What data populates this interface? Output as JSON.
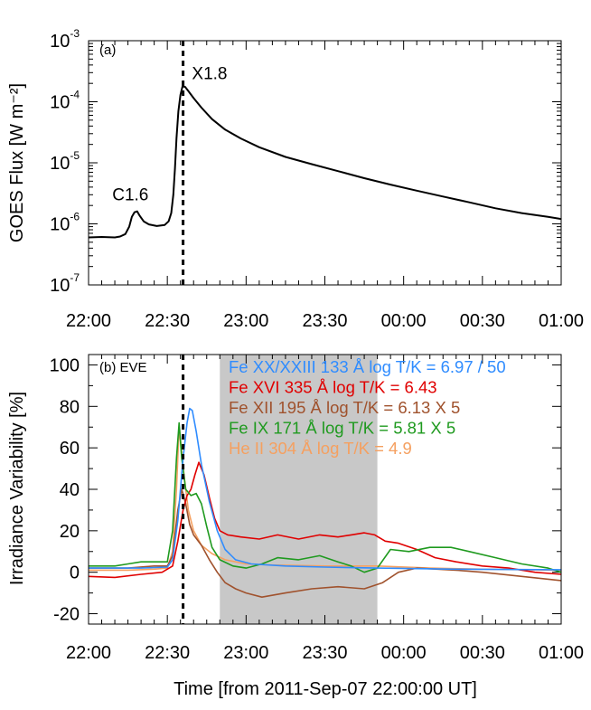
{
  "figure": {
    "xlabel": "Time [from 2011-Sep-07 22:00:00 UT]"
  },
  "chart_data": [
    {
      "panel": "(a)",
      "type": "line",
      "ylabel": "GOES Flux [W m⁻²]",
      "yscale": "log",
      "ylim": [
        1e-07,
        0.001
      ],
      "yticks": [
        {
          "mant": "10",
          "exp": "-7"
        },
        {
          "mant": "10",
          "exp": "-6"
        },
        {
          "mant": "10",
          "exp": "-5"
        },
        {
          "mant": "10",
          "exp": "-4"
        },
        {
          "mant": "10",
          "exp": "-3"
        }
      ],
      "xlim_minutes": [
        0,
        180
      ],
      "xticks": [
        "22:00",
        "22:30",
        "23:00",
        "23:30",
        "00:00",
        "00:30",
        "01:00"
      ],
      "event_line_minutes": 36,
      "annotations": [
        {
          "text": "C1.6",
          "x_minutes": 18,
          "y": 1.6e-06
        },
        {
          "text": "X1.8",
          "x_minutes": 38,
          "y": 0.00018
        }
      ],
      "series": [
        {
          "color": "#000000",
          "points": [
            [
              0,
              6e-07
            ],
            [
              5,
              6.1e-07
            ],
            [
              10,
              6e-07
            ],
            [
              12,
              6.2e-07
            ],
            [
              14,
              6.8e-07
            ],
            [
              15.5,
              9e-07
            ],
            [
              16.5,
              1.3e-06
            ],
            [
              17.5,
              1.55e-06
            ],
            [
              18.5,
              1.6e-06
            ],
            [
              19.5,
              1.35e-06
            ],
            [
              21,
              1.1e-06
            ],
            [
              23,
              9.8e-07
            ],
            [
              26,
              9.2e-07
            ],
            [
              29,
              9.6e-07
            ],
            [
              30.5,
              1.1e-06
            ],
            [
              31.5,
              1.5e-06
            ],
            [
              32.3,
              3e-06
            ],
            [
              32.9,
              8e-06
            ],
            [
              33.5,
              2.5e-05
            ],
            [
              34.2,
              7e-05
            ],
            [
              35,
              0.00013
            ],
            [
              35.8,
              0.00018
            ],
            [
              36.8,
              0.000175
            ],
            [
              38,
              0.00015
            ],
            [
              40,
              0.000115
            ],
            [
              43,
              8e-05
            ],
            [
              47,
              5.2e-05
            ],
            [
              52,
              3.5e-05
            ],
            [
              58,
              2.5e-05
            ],
            [
              65,
              1.8e-05
            ],
            [
              75,
              1.25e-05
            ],
            [
              85,
              9.5e-06
            ],
            [
              95,
              7.3e-06
            ],
            [
              105,
              5.6e-06
            ],
            [
              115,
              4.4e-06
            ],
            [
              125,
              3.5e-06
            ],
            [
              135,
              2.8e-06
            ],
            [
              145,
              2.25e-06
            ],
            [
              155,
              1.8e-06
            ],
            [
              165,
              1.5e-06
            ],
            [
              175,
              1.3e-06
            ],
            [
              180,
              1.2e-06
            ]
          ]
        }
      ]
    },
    {
      "panel": "(b) EVE",
      "type": "line",
      "ylabel": "Irradiance Variability [%]",
      "ylim": [
        -25,
        105
      ],
      "yticks": [
        -20,
        0,
        20,
        40,
        60,
        80,
        100
      ],
      "xlim_minutes": [
        0,
        180
      ],
      "xticks": [
        "22:00",
        "22:30",
        "23:00",
        "23:30",
        "00:00",
        "00:30",
        "01:00"
      ],
      "event_line_minutes": 36,
      "shaded_interval_minutes": [
        50,
        110
      ],
      "series": [
        {
          "name": "Fe XX/XXIII 133 Å log T/K = 6.97 / 50",
          "color": "#2f8cff",
          "points": [
            [
              0,
              2
            ],
            [
              20,
              2
            ],
            [
              30,
              2.5
            ],
            [
              32,
              6
            ],
            [
              34,
              25
            ],
            [
              36,
              55
            ],
            [
              37.5,
              72
            ],
            [
              38.5,
              79
            ],
            [
              39.5,
              78
            ],
            [
              41,
              68
            ],
            [
              43,
              52
            ],
            [
              46,
              34
            ],
            [
              49,
              20
            ],
            [
              52,
              11
            ],
            [
              56,
              6
            ],
            [
              62,
              4
            ],
            [
              75,
              3
            ],
            [
              90,
              2.5
            ],
            [
              110,
              2
            ],
            [
              140,
              1.5
            ],
            [
              180,
              1.2
            ]
          ]
        },
        {
          "name": "Fe XVI 335 Å log T/K = 6.43",
          "color": "#e00000",
          "points": [
            [
              0,
              -2
            ],
            [
              10,
              -2.5
            ],
            [
              20,
              -1
            ],
            [
              28,
              0
            ],
            [
              32,
              3
            ],
            [
              34,
              15
            ],
            [
              36,
              30
            ],
            [
              37.5,
              37
            ],
            [
              39,
              40
            ],
            [
              40.5,
              47
            ],
            [
              42,
              53
            ],
            [
              44,
              47
            ],
            [
              46,
              36
            ],
            [
              48,
              26
            ],
            [
              50,
              20
            ],
            [
              53,
              18
            ],
            [
              58,
              17
            ],
            [
              65,
              16
            ],
            [
              72,
              18
            ],
            [
              80,
              16
            ],
            [
              88,
              18
            ],
            [
              95,
              17
            ],
            [
              100,
              18
            ],
            [
              105,
              19
            ],
            [
              109,
              18
            ],
            [
              113,
              15
            ],
            [
              118,
              14
            ],
            [
              125,
              11
            ],
            [
              132,
              7
            ],
            [
              140,
              5
            ],
            [
              150,
              3
            ],
            [
              160,
              2
            ],
            [
              170,
              0
            ],
            [
              180,
              -1
            ]
          ]
        },
        {
          "name": "Fe XII 195 Å log T/K = 6.13 X 5",
          "color": "#a0522d",
          "points": [
            [
              0,
              2
            ],
            [
              15,
              2
            ],
            [
              25,
              3
            ],
            [
              30,
              3
            ],
            [
              32,
              8
            ],
            [
              34,
              30
            ],
            [
              35.5,
              40
            ],
            [
              37,
              33
            ],
            [
              38.5,
              23
            ],
            [
              40,
              18
            ],
            [
              43,
              13
            ],
            [
              46,
              6
            ],
            [
              49,
              0
            ],
            [
              52,
              -5
            ],
            [
              56,
              -8
            ],
            [
              60,
              -10
            ],
            [
              66,
              -12
            ],
            [
              75,
              -10
            ],
            [
              85,
              -8
            ],
            [
              95,
              -7
            ],
            [
              105,
              -8
            ],
            [
              112,
              -5
            ],
            [
              118,
              0
            ],
            [
              125,
              2
            ],
            [
              140,
              1
            ],
            [
              150,
              0
            ],
            [
              165,
              -2
            ],
            [
              180,
              -4
            ]
          ]
        },
        {
          "name": "Fe IX 171 Å log T/K = 5.81 X 5",
          "color": "#1f9a1f",
          "points": [
            [
              0,
              3
            ],
            [
              10,
              3
            ],
            [
              15,
              4
            ],
            [
              20,
              5
            ],
            [
              25,
              5
            ],
            [
              30,
              5
            ],
            [
              32,
              20
            ],
            [
              33.5,
              55
            ],
            [
              34.5,
              72
            ],
            [
              35.5,
              55
            ],
            [
              37,
              40
            ],
            [
              39,
              37
            ],
            [
              41,
              38
            ],
            [
              43,
              33
            ],
            [
              45,
              22
            ],
            [
              47,
              12
            ],
            [
              50,
              6
            ],
            [
              55,
              3
            ],
            [
              60,
              2
            ],
            [
              66,
              4
            ],
            [
              72,
              7
            ],
            [
              80,
              6
            ],
            [
              88,
              8
            ],
            [
              95,
              5
            ],
            [
              100,
              3
            ],
            [
              105,
              0
            ],
            [
              110,
              2
            ],
            [
              115,
              11
            ],
            [
              122,
              10
            ],
            [
              130,
              12
            ],
            [
              138,
              12
            ],
            [
              145,
              10
            ],
            [
              155,
              7
            ],
            [
              165,
              4
            ],
            [
              175,
              2
            ],
            [
              180,
              0
            ]
          ]
        },
        {
          "name": "He II 304 Å log T/K = 4.9",
          "color": "#f5a060",
          "points": [
            [
              0,
              1
            ],
            [
              15,
              1
            ],
            [
              25,
              1.5
            ],
            [
              30,
              2
            ],
            [
              32,
              10
            ],
            [
              33.5,
              40
            ],
            [
              34.5,
              70
            ],
            [
              35.3,
              60
            ],
            [
              36.5,
              45
            ],
            [
              38,
              30
            ],
            [
              40,
              20
            ],
            [
              43,
              13
            ],
            [
              47,
              9
            ],
            [
              52,
              6
            ],
            [
              60,
              4
            ],
            [
              70,
              3.5
            ],
            [
              90,
              3
            ],
            [
              110,
              3
            ],
            [
              130,
              2
            ],
            [
              150,
              1.5
            ],
            [
              180,
              1
            ]
          ]
        }
      ]
    }
  ]
}
